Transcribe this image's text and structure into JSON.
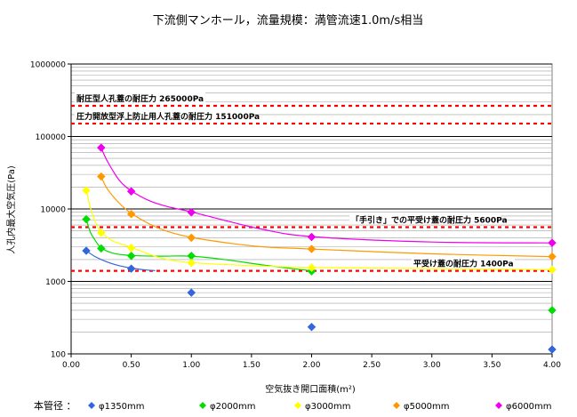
{
  "chart_data": {
    "type": "scatter",
    "title": "下流側マンホール，流量規模：満管流速1.0m/s相当",
    "xlabel": "空気抜き開口面積(m²)",
    "ylabel": "人孔内最大空気圧(Pa)",
    "xlim": [
      0,
      4
    ],
    "ylim": [
      100,
      1000000
    ],
    "yscale": "log",
    "x_ticks": [
      "0.00",
      "0.50",
      "1.00",
      "1.50",
      "2.00",
      "2.50",
      "3.00",
      "3.50",
      "4.00"
    ],
    "y_ticks": [
      "100",
      "1000",
      "10000",
      "100000",
      "1000000"
    ],
    "grid": true,
    "legend_position": "bottom",
    "legend_title": "本管径 ：",
    "series": [
      {
        "name": "φ1350mm",
        "color": "#3366dd",
        "points": [
          [
            0.126,
            2650
          ],
          [
            0.5,
            1500
          ],
          [
            1.0,
            700
          ],
          [
            2.0,
            235
          ],
          [
            4.0,
            115
          ]
        ],
        "curve": [
          [
            0.126,
            2650
          ],
          [
            0.2,
            2200
          ],
          [
            0.3,
            1850
          ],
          [
            0.4,
            1650
          ],
          [
            0.5,
            1530
          ],
          [
            0.6,
            1450
          ],
          [
            0.7,
            1410
          ]
        ]
      },
      {
        "name": "φ2000mm",
        "color": "#00dd00",
        "points": [
          [
            0.126,
            7200
          ],
          [
            0.25,
            2850
          ],
          [
            0.5,
            2250
          ],
          [
            1.0,
            2250
          ],
          [
            2.0,
            1380
          ],
          [
            4.0,
            400
          ]
        ],
        "curve": [
          [
            0.126,
            7200
          ],
          [
            0.16,
            4800
          ],
          [
            0.2,
            3700
          ],
          [
            0.25,
            2900
          ],
          [
            0.35,
            2450
          ],
          [
            0.5,
            2280
          ],
          [
            0.75,
            2230
          ],
          [
            1.0,
            2230
          ],
          [
            1.3,
            1980
          ],
          [
            1.6,
            1680
          ],
          [
            2.0,
            1400
          ]
        ]
      },
      {
        "name": "φ3000mm",
        "color": "#ffff00",
        "points": [
          [
            0.126,
            18000
          ],
          [
            0.25,
            4700
          ],
          [
            0.5,
            2900
          ],
          [
            1.0,
            1800
          ],
          [
            2.0,
            1550
          ],
          [
            4.0,
            1450
          ]
        ],
        "curve": [
          [
            0.126,
            18000
          ],
          [
            0.16,
            10500
          ],
          [
            0.2,
            6800
          ],
          [
            0.25,
            4800
          ],
          [
            0.35,
            3600
          ],
          [
            0.5,
            2950
          ],
          [
            0.75,
            2100
          ],
          [
            1.0,
            1820
          ],
          [
            1.5,
            1650
          ],
          [
            2.0,
            1560
          ],
          [
            3.0,
            1500
          ],
          [
            4.0,
            1450
          ]
        ]
      },
      {
        "name": "φ5000mm",
        "color": "#ff9900",
        "points": [
          [
            0.25,
            28000
          ],
          [
            0.5,
            8500
          ],
          [
            1.0,
            4000
          ],
          [
            2.0,
            2800
          ],
          [
            4.0,
            2200
          ]
        ],
        "curve": [
          [
            0.25,
            28000
          ],
          [
            0.3,
            19000
          ],
          [
            0.4,
            12000
          ],
          [
            0.5,
            8700
          ],
          [
            0.65,
            6200
          ],
          [
            0.8,
            4900
          ],
          [
            1.0,
            4050
          ],
          [
            1.3,
            3400
          ],
          [
            1.6,
            3000
          ],
          [
            2.0,
            2800
          ],
          [
            3.0,
            2400
          ],
          [
            4.0,
            2200
          ]
        ]
      },
      {
        "name": "φ6000mm",
        "color": "#ee00ee",
        "points": [
          [
            0.25,
            70000
          ],
          [
            0.5,
            17500
          ],
          [
            1.0,
            9000
          ],
          [
            2.0,
            4100
          ],
          [
            4.0,
            3400
          ]
        ],
        "curve": [
          [
            0.25,
            70000
          ],
          [
            0.3,
            46000
          ],
          [
            0.4,
            25000
          ],
          [
            0.5,
            17800
          ],
          [
            0.65,
            13000
          ],
          [
            0.8,
            10800
          ],
          [
            1.0,
            9100
          ],
          [
            1.3,
            6800
          ],
          [
            1.6,
            5200
          ],
          [
            2.0,
            4150
          ],
          [
            3.0,
            3500
          ],
          [
            4.0,
            3400
          ]
        ]
      }
    ],
    "reference_lines": [
      {
        "label": "耐圧型人孔蓋の耐圧力 265000Pa",
        "value": 265000
      },
      {
        "label": "圧力開放型浮上防止用人孔蓋の耐圧力 151000Pa",
        "value": 151000
      },
      {
        "label": "「手引き」での平受け蓋の耐圧力 5600Pa",
        "value": 5600
      },
      {
        "label": "平受け蓋の耐圧力 1400Pa",
        "value": 1400
      }
    ]
  }
}
